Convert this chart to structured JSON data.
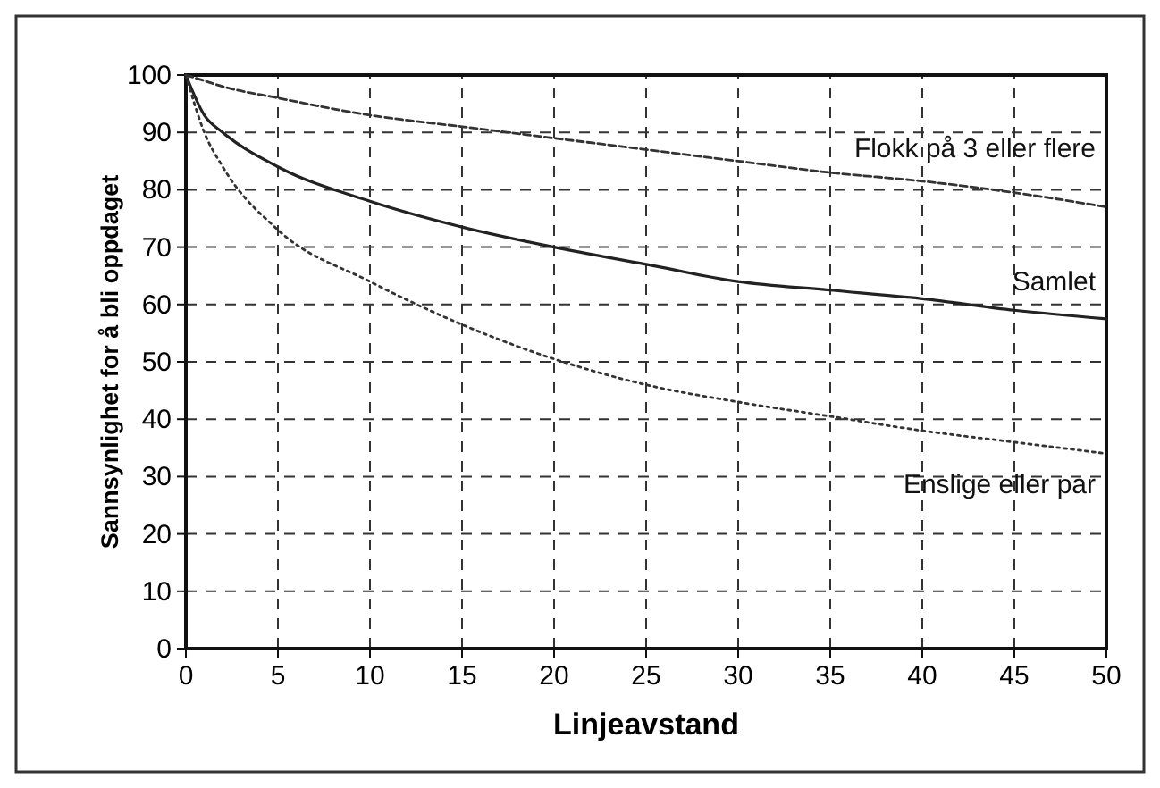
{
  "chart_data": {
    "type": "line",
    "xlabel": "Linjeavstand",
    "ylabel": "Sannsynlighet for å bli oppdaget",
    "xlim": [
      0,
      50
    ],
    "ylim": [
      0,
      100
    ],
    "xticks": [
      0,
      5,
      10,
      15,
      20,
      25,
      30,
      35,
      40,
      45,
      50
    ],
    "yticks": [
      0,
      10,
      20,
      30,
      40,
      50,
      60,
      70,
      80,
      90,
      100
    ],
    "grid": true,
    "marker": "none",
    "x": [
      0,
      1,
      2,
      5,
      10,
      15,
      20,
      25,
      30,
      35,
      40,
      45,
      50
    ],
    "series": [
      {
        "name": "Flokk på 3 eller flere",
        "color": "#333333",
        "line_style": "dashed",
        "values": [
          100,
          99,
          98,
          96,
          93,
          91,
          89,
          87,
          85,
          83,
          81.5,
          79.5,
          77
        ]
      },
      {
        "name": "Samlet",
        "color": "#222222",
        "line_style": "solid",
        "values": [
          100,
          93,
          90,
          84,
          78,
          73.5,
          70,
          67,
          64,
          62.5,
          61,
          59,
          57.5
        ]
      },
      {
        "name": "Enslige eller par",
        "color": "#333333",
        "line_style": "dotted",
        "values": [
          100,
          90,
          84,
          73,
          64,
          56.5,
          50.5,
          46,
          43,
          40.5,
          38,
          36,
          34
        ]
      }
    ]
  }
}
